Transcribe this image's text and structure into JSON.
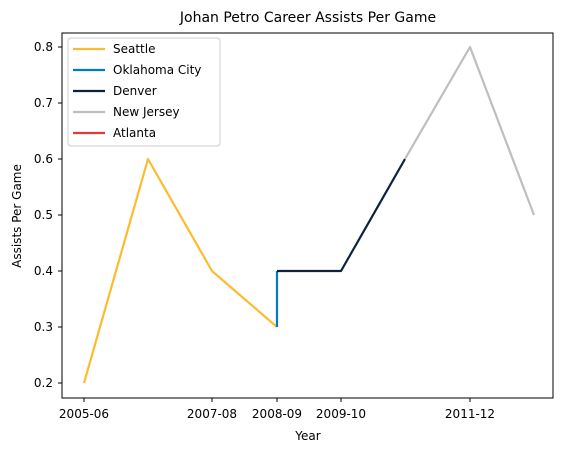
{
  "chart_data": {
    "type": "line",
    "title": "Johan Petro Career Assists Per Game",
    "xlabel": "Year",
    "ylabel": "Assists Per Game",
    "x_tick_labels": [
      "2005-06",
      "2007-08",
      "2008-09",
      "2009-10",
      "2011-12"
    ],
    "y_ticks": [
      0.2,
      0.3,
      0.4,
      0.5,
      0.6,
      0.7,
      0.8
    ],
    "ylim": [
      0.17,
      0.83
    ],
    "grid": false,
    "legend_placement": "upper-left",
    "series": [
      {
        "name": "Seattle",
        "color": "#FDBB30",
        "points": [
          [
            "2005-06",
            0.2
          ],
          [
            "2006-07",
            0.6
          ],
          [
            "2007-08",
            0.4
          ],
          [
            "2008-09",
            0.3
          ]
        ]
      },
      {
        "name": "Oklahoma City",
        "color": "#007AC1",
        "points": [
          [
            "2008-09",
            0.3
          ],
          [
            "2008-09",
            0.4
          ]
        ]
      },
      {
        "name": "Denver",
        "color": "#0E2240",
        "points": [
          [
            "2008-09",
            0.4
          ],
          [
            "2009-10",
            0.4
          ],
          [
            "2010-11",
            0.6
          ]
        ]
      },
      {
        "name": "New Jersey",
        "color": "#BEBEBE",
        "points": [
          [
            "2010-11",
            0.6
          ],
          [
            "2011-12",
            0.8
          ],
          [
            "2012-13",
            0.5
          ]
        ]
      },
      {
        "name": "Atlanta",
        "color": "#E03A3E",
        "points": []
      }
    ]
  }
}
